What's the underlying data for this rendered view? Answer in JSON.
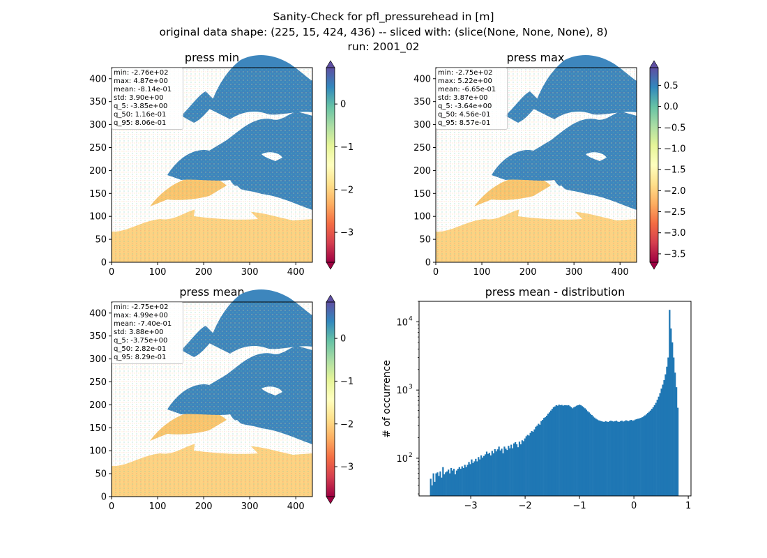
{
  "figure": {
    "title_lines": [
      "Sanity-Check for pfl_pressurehead in [m]",
      "original data shape: (225, 15, 424, 436) -- sliced with: (slice(None, None, None), 8)",
      "run: 2001_02"
    ]
  },
  "colors": {
    "bar": "#1f77b4",
    "colormap": [
      "#9e0142",
      "#d53e4f",
      "#f46d43",
      "#fdae61",
      "#fee08b",
      "#ffffbf",
      "#e6f598",
      "#abdda4",
      "#66c2a5",
      "#3288bd",
      "#5e4fa2"
    ]
  },
  "panels": [
    {
      "title": "press min",
      "xticks": [
        "0",
        "100",
        "200",
        "300",
        "400"
      ],
      "yticks": [
        "0",
        "50",
        "100",
        "150",
        "200",
        "250",
        "300",
        "350",
        "400"
      ],
      "stats": [
        "min: -2.76e+02",
        "max: 4.87e+00",
        "mean: -8.14e-01",
        "std: 3.90e+00",
        "q_5: -3.85e+00",
        "q_50: 1.16e-01",
        "q_95: 8.06e-01"
      ],
      "colorbar": {
        "range": [
          -3.7,
          0.85
        ],
        "ticks": [
          "0",
          "−1",
          "−2",
          "−3"
        ],
        "tick_values": [
          0,
          -1,
          -2,
          -3
        ]
      }
    },
    {
      "title": "press max",
      "xticks": [
        "0",
        "100",
        "200",
        "300",
        "400"
      ],
      "yticks": [
        "0",
        "50",
        "100",
        "150",
        "200",
        "250",
        "300",
        "350",
        "400"
      ],
      "stats": [
        "min: -2.75e+02",
        "max: 5.22e+00",
        "mean: -6.65e-01",
        "std: 3.87e+00",
        "q_5: -3.64e+00",
        "q_50: 4.56e-01",
        "q_95: 8.57e-01"
      ],
      "colorbar": {
        "range": [
          -3.7,
          0.92
        ],
        "ticks": [
          "0.5",
          "0.0",
          "−0.5",
          "−1.0",
          "−1.5",
          "−2.0",
          "−2.5",
          "−3.0",
          "−3.5"
        ],
        "tick_values": [
          0.5,
          0,
          -0.5,
          -1.0,
          -1.5,
          -2.0,
          -2.5,
          -3.0,
          -3.5
        ]
      }
    },
    {
      "title": "press mean",
      "xticks": [
        "0",
        "100",
        "200",
        "300",
        "400"
      ],
      "yticks": [
        "0",
        "50",
        "100",
        "150",
        "200",
        "250",
        "300",
        "350",
        "400"
      ],
      "stats": [
        "min: -2.75e+02",
        "max: 4.99e+00",
        "mean: -7.40e-01",
        "std: 3.88e+00",
        "q_5: -3.75e+00",
        "q_50: 2.82e-01",
        "q_95: 8.29e-01"
      ],
      "colorbar": {
        "range": [
          -3.7,
          0.85
        ],
        "ticks": [
          "0",
          "−1",
          "−2",
          "−3"
        ],
        "tick_values": [
          0,
          -1,
          -2,
          -3
        ]
      }
    }
  ],
  "chart_data": [
    {
      "type": "heatmap",
      "title": "press min",
      "xlim": [
        0,
        436
      ],
      "ylim": [
        0,
        424
      ],
      "color_range": [
        -3.7,
        0.85
      ]
    },
    {
      "type": "heatmap",
      "title": "press max",
      "xlim": [
        0,
        436
      ],
      "ylim": [
        0,
        424
      ],
      "color_range": [
        -3.7,
        0.92
      ]
    },
    {
      "type": "heatmap",
      "title": "press mean",
      "xlim": [
        0,
        436
      ],
      "ylim": [
        0,
        424
      ],
      "color_range": [
        -3.7,
        0.85
      ]
    },
    {
      "type": "bar",
      "title": "press mean - distribution",
      "ylabel": "# of occurrence",
      "yscale": "log",
      "xlim": [
        -3.95,
        1.05
      ],
      "ylim": [
        28,
        20000
      ],
      "xticks": [
        "−3",
        "−2",
        "−1",
        "0",
        "1"
      ],
      "xtick_values": [
        -3,
        -2,
        -1,
        0,
        1
      ],
      "yticks": [
        "10",
        "10",
        "10"
      ],
      "ytick_exponents": [
        "2",
        "3",
        "4"
      ],
      "ytick_values": [
        100,
        1000,
        10000
      ],
      "bin_start": -3.75,
      "bin_width": 0.0251,
      "values": [
        50,
        40,
        60,
        45,
        60,
        62,
        55,
        64,
        52,
        74,
        58,
        62,
        64,
        68,
        60,
        72,
        66,
        70,
        58,
        66,
        70,
        74,
        70,
        76,
        72,
        80,
        74,
        80,
        88,
        82,
        96,
        85,
        90,
        98,
        90,
        104,
        96,
        110,
        102,
        108,
        114,
        125,
        116,
        120,
        110,
        128,
        118,
        136,
        126,
        135,
        148,
        130,
        138,
        118,
        148,
        138,
        132,
        152,
        140,
        158,
        140,
        165,
        172,
        160,
        145,
        175,
        160,
        183,
        178,
        195,
        210,
        220,
        215,
        235,
        250,
        245,
        265,
        290,
        300,
        320,
        310,
        350,
        365,
        390,
        400,
        420,
        450,
        470,
        500,
        530,
        560,
        575,
        600,
        590,
        610,
        600,
        605,
        590,
        600,
        598,
        595,
        600,
        580,
        560,
        540,
        560,
        575,
        590,
        600,
        610,
        600,
        580,
        560,
        540,
        515,
        490,
        470,
        450,
        430,
        410,
        395,
        380,
        370,
        360,
        355,
        350,
        345,
        340,
        350,
        345,
        340,
        350,
        355,
        350,
        345,
        350,
        355,
        345,
        340,
        350,
        355,
        345,
        350,
        360,
        355,
        350,
        360,
        365,
        355,
        360,
        370,
        375,
        380,
        385,
        390,
        400,
        410,
        425,
        440,
        460,
        480,
        500,
        530,
        560,
        600,
        650,
        720,
        800,
        900,
        1050,
        1200,
        1400,
        1700,
        2200,
        3000,
        15000,
        8000,
        5000,
        3000,
        1800,
        1100,
        550
      ]
    }
  ]
}
